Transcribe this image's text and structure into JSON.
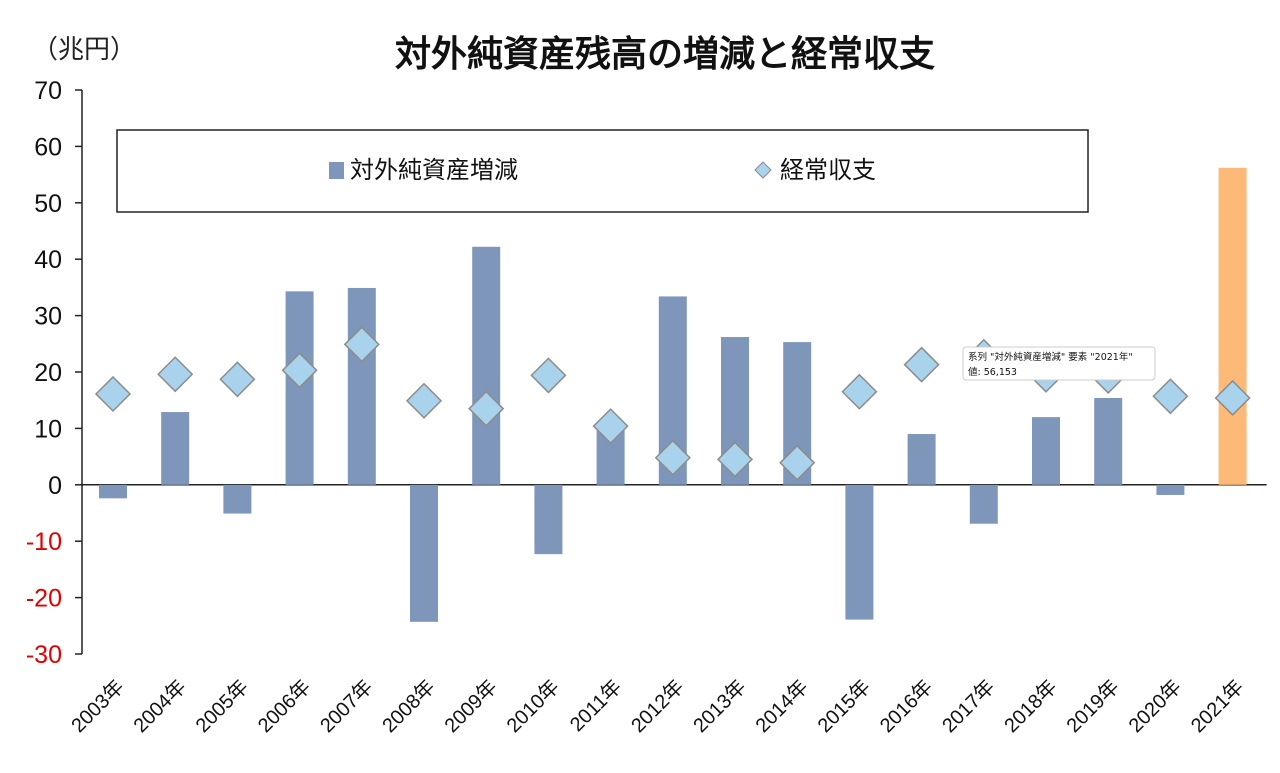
{
  "chart_data": {
    "type": "bar",
    "title": "対外純資産残高の増減と経常収支",
    "unit_label": "（兆円）",
    "categories": [
      "2003年",
      "2004年",
      "2005年",
      "2006年",
      "2007年",
      "2008年",
      "2009年",
      "2010年",
      "2011年",
      "2012年",
      "2013年",
      "2014年",
      "2015年",
      "2016年",
      "2017年",
      "2018年",
      "2019年",
      "2020年",
      "2021年"
    ],
    "series": [
      {
        "name": "対外純資産増減",
        "kind": "bar",
        "color": "#7f96bb",
        "highlight_color": "#fdb977",
        "highlight_index": 18,
        "values": [
          -2.4,
          12.9,
          -5.1,
          34.3,
          34.9,
          -24.3,
          42.2,
          -12.3,
          10.4,
          33.4,
          26.2,
          25.3,
          -23.9,
          9.0,
          -6.9,
          12.0,
          15.4,
          -1.8,
          56.2
        ]
      },
      {
        "name": "経常収支",
        "kind": "marker",
        "marker": "diamond",
        "color": "#a9d3ec",
        "values": [
          16.1,
          19.6,
          18.7,
          20.3,
          24.9,
          14.9,
          13.5,
          19.4,
          10.4,
          4.8,
          4.5,
          3.9,
          16.5,
          21.3,
          22.7,
          19.5,
          19.3,
          15.7,
          15.4
        ]
      }
    ],
    "ylim": [
      -30,
      70
    ],
    "yticks": [
      70,
      60,
      50,
      40,
      30,
      20,
      10,
      0,
      -10,
      -20,
      -30
    ],
    "negative_tick_color": "#e00000",
    "legend_position": "top",
    "grid": false,
    "tooltip": {
      "line1": "系列 \"対外純資産増減\" 要素 \"2021年\"",
      "line2": "値: 56,153"
    }
  }
}
